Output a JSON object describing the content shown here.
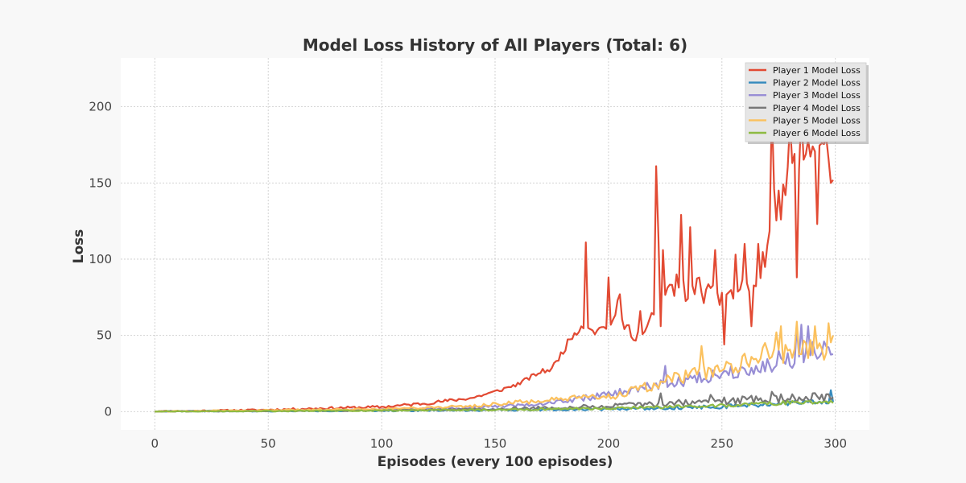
{
  "chart_data": {
    "type": "line",
    "title": "Model Loss History of All Players (Total: 6)",
    "xlabel": "Episodes (every 100 episodes)",
    "ylabel": "Loss",
    "xlim": [
      -15,
      315
    ],
    "ylim": [
      -12,
      232
    ],
    "xticks": [
      0,
      50,
      100,
      150,
      200,
      250,
      300
    ],
    "yticks": [
      0,
      50,
      100,
      150,
      200
    ],
    "grid": true,
    "legend_position": "top-right",
    "series": [
      {
        "name": "Player 1 Model Loss",
        "color": "#E24A33",
        "anchors": [
          [
            0,
            0.2
          ],
          [
            25,
            0.6
          ],
          [
            50,
            1.2
          ],
          [
            75,
            2.2
          ],
          [
            100,
            3.0
          ],
          [
            120,
            5.5
          ],
          [
            140,
            9
          ],
          [
            150,
            13
          ],
          [
            160,
            18
          ],
          [
            170,
            26
          ],
          [
            175,
            28
          ],
          [
            180,
            40
          ],
          [
            185,
            52
          ],
          [
            190,
            58
          ],
          [
            195,
            52
          ],
          [
            200,
            58
          ],
          [
            205,
            60
          ],
          [
            210,
            52
          ],
          [
            215,
            50
          ],
          [
            220,
            62
          ],
          [
            225,
            78
          ],
          [
            230,
            82
          ],
          [
            235,
            78
          ],
          [
            240,
            82
          ],
          [
            245,
            74
          ],
          [
            250,
            82
          ],
          [
            255,
            76
          ],
          [
            260,
            84
          ],
          [
            265,
            80
          ],
          [
            270,
            108
          ],
          [
            275,
            135
          ],
          [
            280,
            158
          ],
          [
            285,
            168
          ],
          [
            290,
            172
          ],
          [
            295,
            175
          ],
          [
            300,
            168
          ]
        ],
        "noise": [
          0.25,
          0.3,
          0.35,
          0.5,
          0.6,
          0.65,
          0.7,
          0.75,
          0.8,
          1.0,
          1.1,
          1.5,
          1.8,
          2.0,
          2.2,
          2.5,
          2.8,
          3.0,
          3.2,
          4,
          4,
          4.5,
          4.5,
          5,
          5,
          5,
          5,
          5,
          5,
          5,
          5,
          5,
          5,
          5,
          5,
          5
        ],
        "spikes": [
          [
            190,
            111
          ],
          [
            196,
            55
          ],
          [
            200,
            88
          ],
          [
            204,
            73
          ],
          [
            205,
            77
          ],
          [
            214,
            66
          ],
          [
            221,
            161
          ],
          [
            222,
            115
          ],
          [
            223,
            56
          ],
          [
            224,
            106
          ],
          [
            230,
            90
          ],
          [
            232,
            129
          ],
          [
            236,
            121
          ],
          [
            238,
            77
          ],
          [
            247,
            106
          ],
          [
            249,
            70
          ],
          [
            251,
            44
          ],
          [
            256,
            103
          ],
          [
            260,
            110
          ],
          [
            263,
            56
          ],
          [
            266,
            110
          ],
          [
            272,
            199
          ],
          [
            273,
            146
          ],
          [
            275,
            145
          ],
          [
            276,
            126
          ],
          [
            280,
            190
          ],
          [
            283,
            88
          ],
          [
            285,
            197
          ],
          [
            290,
            174
          ],
          [
            292,
            123
          ],
          [
            298,
            150
          ],
          [
            299,
            152
          ]
        ],
        "seed": 11
      },
      {
        "name": "Player 2 Model Loss",
        "color": "#348ABD",
        "anchors": [
          [
            0,
            0.1
          ],
          [
            50,
            0.3
          ],
          [
            100,
            0.6
          ],
          [
            150,
            1.0
          ],
          [
            200,
            1.8
          ],
          [
            250,
            3.2
          ],
          [
            300,
            7
          ]
        ],
        "noise": [
          0.15,
          0.2,
          0.3,
          0.4,
          0.6,
          0.8,
          1.0
        ],
        "spikes": [
          [
            298,
            14
          ],
          [
            285,
            5
          ]
        ],
        "seed": 22
      },
      {
        "name": "Player 3 Model Loss",
        "color": "#988ED5",
        "anchors": [
          [
            0,
            0.2
          ],
          [
            50,
            0.6
          ],
          [
            100,
            1.2
          ],
          [
            140,
            2.5
          ],
          [
            150,
            3.5
          ],
          [
            170,
            5
          ],
          [
            180,
            7
          ],
          [
            190,
            9
          ],
          [
            200,
            11
          ],
          [
            210,
            14
          ],
          [
            220,
            17
          ],
          [
            230,
            19
          ],
          [
            240,
            22
          ],
          [
            250,
            25
          ],
          [
            260,
            28
          ],
          [
            270,
            30
          ],
          [
            280,
            34
          ],
          [
            290,
            40
          ],
          [
            300,
            42
          ]
        ],
        "noise": [
          0.2,
          0.3,
          0.4,
          0.5,
          0.6,
          0.8,
          1.0,
          1.2,
          1.5,
          1.8,
          2.0,
          2.3,
          2.5,
          3,
          3,
          3.5,
          4,
          4,
          4
        ],
        "spikes": [
          [
            225,
            30
          ],
          [
            275,
            40
          ],
          [
            283,
            55
          ],
          [
            285,
            57
          ],
          [
            288,
            56
          ],
          [
            295,
            46
          ],
          [
            300,
            48
          ]
        ],
        "seed": 33
      },
      {
        "name": "Player 4 Model Loss",
        "color": "#777777",
        "anchors": [
          [
            0,
            0.1
          ],
          [
            50,
            0.4
          ],
          [
            100,
            0.8
          ],
          [
            150,
            1.6
          ],
          [
            180,
            2.6
          ],
          [
            200,
            3.5
          ],
          [
            220,
            5
          ],
          [
            250,
            7
          ],
          [
            270,
            8.5
          ],
          [
            300,
            9.5
          ]
        ],
        "noise": [
          0.15,
          0.2,
          0.3,
          0.5,
          0.8,
          1.0,
          1.3,
          1.6,
          1.8,
          2.0
        ],
        "spikes": [
          [
            223,
            12
          ],
          [
            245,
            11
          ],
          [
            265,
            10
          ],
          [
            272,
            13
          ],
          [
            290,
            12
          ]
        ],
        "seed": 44
      },
      {
        "name": "Player 5 Model Loss",
        "color": "#FBC15E",
        "anchors": [
          [
            0,
            0.2
          ],
          [
            50,
            0.8
          ],
          [
            100,
            1.8
          ],
          [
            140,
            3.5
          ],
          [
            150,
            5
          ],
          [
            170,
            7
          ],
          [
            180,
            8
          ],
          [
            190,
            9
          ],
          [
            200,
            10
          ],
          [
            210,
            13
          ],
          [
            220,
            17
          ],
          [
            230,
            22
          ],
          [
            240,
            25
          ],
          [
            250,
            28
          ],
          [
            260,
            31
          ],
          [
            270,
            35
          ],
          [
            280,
            39
          ],
          [
            290,
            42
          ],
          [
            300,
            45
          ]
        ],
        "noise": [
          0.2,
          0.3,
          0.4,
          0.6,
          0.8,
          1.0,
          1.2,
          1.4,
          1.6,
          2.0,
          2.3,
          2.5,
          3,
          3,
          3.5,
          3.5,
          4,
          4,
          4
        ],
        "spikes": [
          [
            241,
            43
          ],
          [
            260,
            38
          ],
          [
            266,
            32
          ],
          [
            268,
            42
          ],
          [
            269,
            45
          ],
          [
            274,
            52
          ],
          [
            276,
            56
          ],
          [
            279,
            40
          ],
          [
            283,
            59
          ],
          [
            291,
            56
          ],
          [
            295,
            34
          ],
          [
            297,
            58
          ],
          [
            299,
            50
          ]
        ],
        "seed": 55
      },
      {
        "name": "Player 6 Model Loss",
        "color": "#8EBA42",
        "anchors": [
          [
            0,
            0.1
          ],
          [
            50,
            0.3
          ],
          [
            100,
            0.7
          ],
          [
            150,
            1.2
          ],
          [
            200,
            2.2
          ],
          [
            250,
            4.0
          ],
          [
            300,
            7.0
          ]
        ],
        "noise": [
          0.15,
          0.2,
          0.3,
          0.4,
          0.5,
          0.7,
          0.9
        ],
        "spikes": [],
        "seed": 66
      }
    ]
  }
}
